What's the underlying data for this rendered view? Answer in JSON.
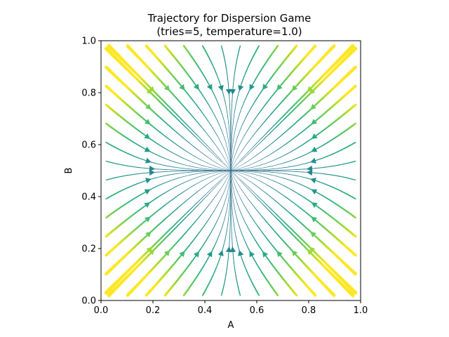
{
  "chart_data": {
    "type": "streamplot",
    "title_line1": "Trajectory for Dispersion Game",
    "title_line2": "(tries=5, temperature=1.0)",
    "xlabel": "A",
    "ylabel": "B",
    "xlim": [
      0.0,
      1.0
    ],
    "ylim": [
      0.0,
      1.0
    ],
    "x_ticks": [
      "0.0",
      "0.2",
      "0.4",
      "0.6",
      "0.8",
      "1.0"
    ],
    "y_ticks": [
      "0.0",
      "0.2",
      "0.4",
      "0.6",
      "0.8",
      "1.0"
    ],
    "fixed_point": [
      0.5,
      0.5
    ],
    "colormap": "viridis",
    "grid": false,
    "legend": "none"
  }
}
